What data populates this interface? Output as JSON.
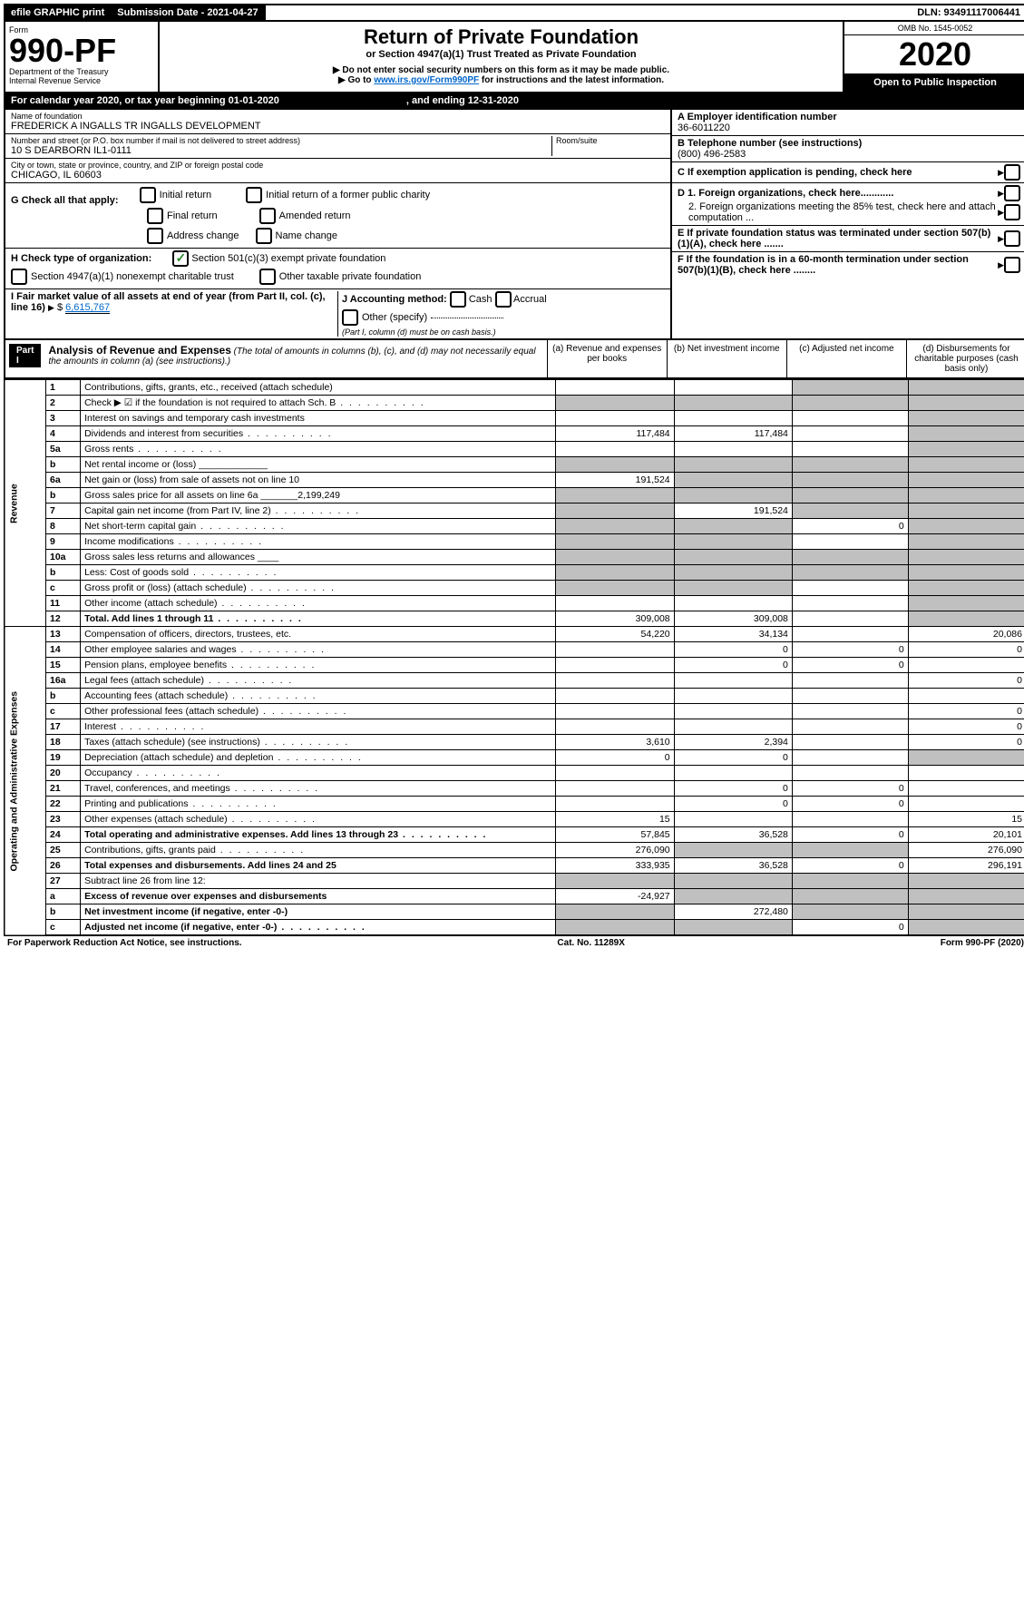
{
  "topbar": {
    "efile": "efile GRAPHIC print",
    "submission_label": "Submission Date - 2021-04-27",
    "dln": "DLN: 93491117006441"
  },
  "header": {
    "form_word": "Form",
    "form_num": "990-PF",
    "dept": "Department of the Treasury",
    "irs": "Internal Revenue Service",
    "title": "Return of Private Foundation",
    "subtitle": "or Section 4947(a)(1) Trust Treated as Private Foundation",
    "note1": "▶ Do not enter social security numbers on this form as it may be made public.",
    "note2_pre": "▶ Go to ",
    "note2_link": "www.irs.gov/Form990PF",
    "note2_post": " for instructions and the latest information.",
    "omb": "OMB No. 1545-0052",
    "year": "2020",
    "open": "Open to Public Inspection"
  },
  "calyear": {
    "text_a": "For calendar year 2020, or tax year beginning 01-01-2020",
    "text_b": ", and ending 12-31-2020"
  },
  "info": {
    "name_label": "Name of foundation",
    "name": "FREDERICK A INGALLS TR INGALLS DEVELOPMENT",
    "addr_label": "Number and street (or P.O. box number if mail is not delivered to street address)",
    "addr": "10 S DEARBORN IL1-0111",
    "room_label": "Room/suite",
    "city_label": "City or town, state or province, country, and ZIP or foreign postal code",
    "city": "CHICAGO, IL  60603",
    "ein_label": "A Employer identification number",
    "ein": "36-6011220",
    "phone_label": "B Telephone number (see instructions)",
    "phone": "(800) 496-2583",
    "c_label": "C If exemption application is pending, check here",
    "g_label": "G Check all that apply:",
    "g_opts": [
      "Initial return",
      "Initial return of a former public charity",
      "Final return",
      "Amended return",
      "Address change",
      "Name change"
    ],
    "h_label": "H Check type of organization:",
    "h_opt1": "Section 501(c)(3) exempt private foundation",
    "h_opt2": "Section 4947(a)(1) nonexempt charitable trust",
    "h_opt3": "Other taxable private foundation",
    "i_label": "I Fair market value of all assets at end of year (from Part II, col. (c), line 16)",
    "i_val": "6,615,767",
    "j_label": "J Accounting method:",
    "j_opts": [
      "Cash",
      "Accrual"
    ],
    "j_other": "Other (specify)",
    "j_note": "(Part I, column (d) must be on cash basis.)",
    "d1": "D 1. Foreign organizations, check here............",
    "d2": "2. Foreign organizations meeting the 85% test, check here and attach computation ...",
    "e": "E If private foundation status was terminated under section 507(b)(1)(A), check here .......",
    "f": "F If the foundation is in a 60-month termination under section 507(b)(1)(B), check here ........"
  },
  "part1": {
    "label": "Part I",
    "title": "Analysis of Revenue and Expenses",
    "note": "(The total of amounts in columns (b), (c), and (d) may not necessarily equal the amounts in column (a) (see instructions).)",
    "cols": {
      "a": "(a)   Revenue and expenses per books",
      "b": "(b)   Net investment income",
      "c": "(c)   Adjusted net income",
      "d": "(d)   Disbursements for charitable purposes (cash basis only)"
    }
  },
  "sections": {
    "revenue": "Revenue",
    "expenses": "Operating and Administrative Expenses"
  },
  "rows": [
    {
      "n": "1",
      "d": "Contributions, gifts, grants, etc., received (attach schedule)",
      "a": "",
      "b": "",
      "c": "g",
      "dcol": "g"
    },
    {
      "n": "2",
      "d": "Check ▶ ☑ if the foundation is not required to attach Sch. B",
      "dots": true,
      "a": "g",
      "b": "g",
      "c": "g",
      "dcol": "g"
    },
    {
      "n": "3",
      "d": "Interest on savings and temporary cash investments",
      "a": "",
      "b": "",
      "c": "",
      "dcol": "g"
    },
    {
      "n": "4",
      "d": "Dividends and interest from securities",
      "dots": true,
      "a": "117,484",
      "b": "117,484",
      "c": "",
      "dcol": "g"
    },
    {
      "n": "5a",
      "d": "Gross rents",
      "dots": true,
      "a": "",
      "b": "",
      "c": "",
      "dcol": "g"
    },
    {
      "n": "b",
      "d": "Net rental income or (loss)   _____________",
      "a": "g",
      "b": "g",
      "c": "g",
      "dcol": "g"
    },
    {
      "n": "6a",
      "d": "Net gain or (loss) from sale of assets not on line 10",
      "a": "191,524",
      "b": "g",
      "c": "g",
      "dcol": "g"
    },
    {
      "n": "b",
      "d": "Gross sales price for all assets on line 6a _______2,199,249",
      "a": "g",
      "b": "g",
      "c": "g",
      "dcol": "g"
    },
    {
      "n": "7",
      "d": "Capital gain net income (from Part IV, line 2)",
      "dots": true,
      "a": "g",
      "b": "191,524",
      "c": "g",
      "dcol": "g"
    },
    {
      "n": "8",
      "d": "Net short-term capital gain",
      "dots": true,
      "a": "g",
      "b": "g",
      "c": "0",
      "dcol": "g"
    },
    {
      "n": "9",
      "d": "Income modifications",
      "dots": true,
      "a": "g",
      "b": "g",
      "c": "",
      "dcol": "g"
    },
    {
      "n": "10a",
      "d": "Gross sales less returns and allowances    ____",
      "a": "g",
      "b": "g",
      "c": "g",
      "dcol": "g"
    },
    {
      "n": "b",
      "d": "Less: Cost of goods sold",
      "dots": true,
      "a": "g",
      "b": "g",
      "c": "g",
      "dcol": "g"
    },
    {
      "n": "c",
      "d": "Gross profit or (loss) (attach schedule)",
      "dots": true,
      "a": "g",
      "b": "g",
      "c": "",
      "dcol": "g"
    },
    {
      "n": "11",
      "d": "Other income (attach schedule)",
      "dots": true,
      "a": "",
      "b": "",
      "c": "",
      "dcol": "g"
    },
    {
      "n": "12",
      "d": "Total. Add lines 1 through 11",
      "dots": true,
      "bold": true,
      "a": "309,008",
      "b": "309,008",
      "c": "",
      "dcol": "g"
    },
    {
      "n": "13",
      "d": "Compensation of officers, directors, trustees, etc.",
      "a": "54,220",
      "b": "34,134",
      "c": "",
      "dcol": "20,086"
    },
    {
      "n": "14",
      "d": "Other employee salaries and wages",
      "dots": true,
      "a": "",
      "b": "0",
      "c": "0",
      "dcol": "0"
    },
    {
      "n": "15",
      "d": "Pension plans, employee benefits",
      "dots": true,
      "a": "",
      "b": "0",
      "c": "0",
      "dcol": ""
    },
    {
      "n": "16a",
      "d": "Legal fees (attach schedule)",
      "dots": true,
      "a": "",
      "b": "",
      "c": "",
      "dcol": "0"
    },
    {
      "n": "b",
      "d": "Accounting fees (attach schedule)",
      "dots": true,
      "a": "",
      "b": "",
      "c": "",
      "dcol": ""
    },
    {
      "n": "c",
      "d": "Other professional fees (attach schedule)",
      "dots": true,
      "a": "",
      "b": "",
      "c": "",
      "dcol": "0"
    },
    {
      "n": "17",
      "d": "Interest",
      "dots": true,
      "a": "",
      "b": "",
      "c": "",
      "dcol": "0"
    },
    {
      "n": "18",
      "d": "Taxes (attach schedule) (see instructions)",
      "dots": true,
      "a": "3,610",
      "b": "2,394",
      "c": "",
      "dcol": "0"
    },
    {
      "n": "19",
      "d": "Depreciation (attach schedule) and depletion",
      "dots": true,
      "a": "0",
      "b": "0",
      "c": "",
      "dcol": "g"
    },
    {
      "n": "20",
      "d": "Occupancy",
      "dots": true,
      "a": "",
      "b": "",
      "c": "",
      "dcol": ""
    },
    {
      "n": "21",
      "d": "Travel, conferences, and meetings",
      "dots": true,
      "a": "",
      "b": "0",
      "c": "0",
      "dcol": ""
    },
    {
      "n": "22",
      "d": "Printing and publications",
      "dots": true,
      "a": "",
      "b": "0",
      "c": "0",
      "dcol": ""
    },
    {
      "n": "23",
      "d": "Other expenses (attach schedule)",
      "dots": true,
      "a": "15",
      "b": "",
      "c": "",
      "dcol": "15"
    },
    {
      "n": "24",
      "d": "Total operating and administrative expenses. Add lines 13 through 23",
      "dots": true,
      "bold": true,
      "a": "57,845",
      "b": "36,528",
      "c": "0",
      "dcol": "20,101"
    },
    {
      "n": "25",
      "d": "Contributions, gifts, grants paid",
      "dots": true,
      "a": "276,090",
      "b": "g",
      "c": "g",
      "dcol": "276,090"
    },
    {
      "n": "26",
      "d": "Total expenses and disbursements. Add lines 24 and 25",
      "bold": true,
      "a": "333,935",
      "b": "36,528",
      "c": "0",
      "dcol": "296,191"
    },
    {
      "n": "27",
      "d": "Subtract line 26 from line 12:",
      "a": "g",
      "b": "g",
      "c": "g",
      "dcol": "g"
    },
    {
      "n": "a",
      "d": "Excess of revenue over expenses and disbursements",
      "bold": true,
      "a": "-24,927",
      "b": "g",
      "c": "g",
      "dcol": "g"
    },
    {
      "n": "b",
      "d": "Net investment income (if negative, enter -0-)",
      "bold": true,
      "a": "g",
      "b": "272,480",
      "c": "g",
      "dcol": "g"
    },
    {
      "n": "c",
      "d": "Adjusted net income (if negative, enter -0-)",
      "dots": true,
      "bold": true,
      "a": "g",
      "b": "g",
      "c": "0",
      "dcol": "g"
    }
  ],
  "footer": {
    "left": "For Paperwork Reduction Act Notice, see instructions.",
    "center": "Cat. No. 11289X",
    "right": "Form 990-PF (2020)"
  }
}
